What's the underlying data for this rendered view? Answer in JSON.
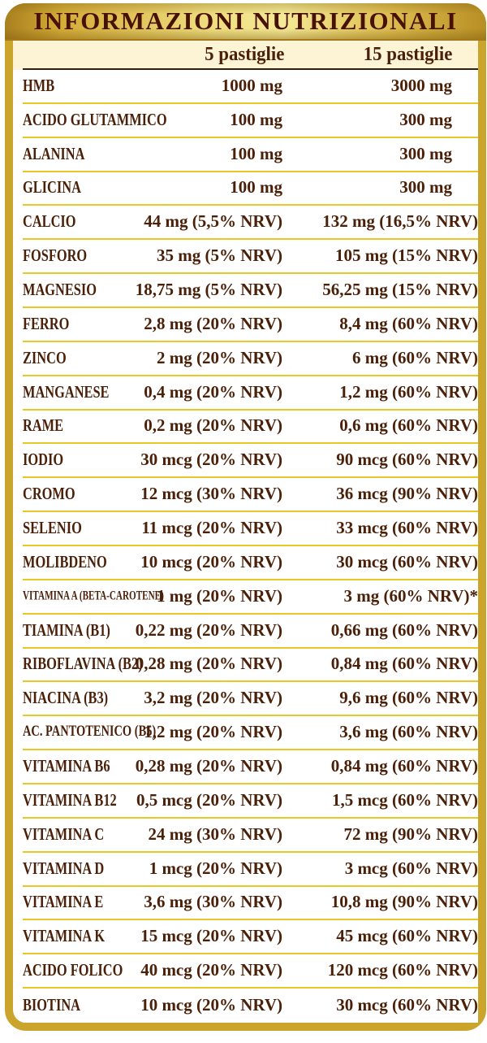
{
  "title": "INFORMAZIONI NUTRIZIONALI",
  "columns": [
    "5 pastiglie",
    "15 pastiglie"
  ],
  "rows": [
    {
      "name": "HMB",
      "per5": "1000 mg",
      "per15": "3000 mg"
    },
    {
      "name": "ACIDO GLUTAMMICO",
      "per5": "100 mg",
      "per15": "300 mg"
    },
    {
      "name": "ALANINA",
      "per5": "100 mg",
      "per15": "300 mg"
    },
    {
      "name": "GLICINA",
      "per5": "100 mg",
      "per15": "300 mg"
    },
    {
      "name": "CALCIO",
      "per5": "44 mg (5,5% NRV)",
      "per15": "132 mg (16,5% NRV)"
    },
    {
      "name": "FOSFORO",
      "per5": "35 mg (5% NRV)",
      "per15": "105 mg (15% NRV)"
    },
    {
      "name": "MAGNESIO",
      "per5": "18,75 mg (5% NRV)",
      "per15": "56,25 mg (15% NRV)"
    },
    {
      "name": "FERRO",
      "per5": "2,8 mg (20% NRV)",
      "per15": "8,4 mg (60% NRV)"
    },
    {
      "name": "ZINCO",
      "per5": "2 mg (20% NRV)",
      "per15": "6 mg (60% NRV)"
    },
    {
      "name": "MANGANESE",
      "per5": "0,4 mg (20% NRV)",
      "per15": "1,2 mg (60% NRV)"
    },
    {
      "name": "RAME",
      "per5": "0,2 mg (20% NRV)",
      "per15": "0,6 mg (60% NRV)"
    },
    {
      "name": "IODIO",
      "per5": "30 mcg (20% NRV)",
      "per15": "90 mcg (60% NRV)"
    },
    {
      "name": "CROMO",
      "per5": "12 mcg (30% NRV)",
      "per15": "36 mcg (90% NRV)"
    },
    {
      "name": "SELENIO",
      "per5": "11 mcg (20% NRV)",
      "per15": "33 mcg (60% NRV)"
    },
    {
      "name": "MOLIBDENO",
      "per5": "10 mcg (20% NRV)",
      "per15": "30 mcg (60% NRV)"
    },
    {
      "name": "VITAMINA A (BETA-CAROTENE)",
      "per5": "1 mg (20% NRV)",
      "per15": "3 mg (60% NRV)*"
    },
    {
      "name": "TIAMINA (B1)",
      "per5": "0,22 mg (20% NRV)",
      "per15": "0,66 mg (60% NRV)"
    },
    {
      "name": "RIBOFLAVINA (B2)",
      "per5": "0,28 mg (20% NRV)",
      "per15": "0,84 mg (60% NRV)"
    },
    {
      "name": "NIACINA (B3)",
      "per5": "3,2 mg (20% NRV)",
      "per15": "9,6 mg (60% NRV)"
    },
    {
      "name": "AC. PANTOTENICO (B5)",
      "per5": "1,2 mg (20% NRV)",
      "per15": "3,6 mg (60% NRV)"
    },
    {
      "name": "VITAMINA B6",
      "per5": "0,28 mg (20% NRV)",
      "per15": "0,84 mg (60% NRV)"
    },
    {
      "name": "VITAMINA B12",
      "per5": "0,5 mcg (20% NRV)",
      "per15": "1,5 mcg (60% NRV)"
    },
    {
      "name": "VITAMINA C",
      "per5": "24 mg (30% NRV)",
      "per15": "72 mg (90% NRV)"
    },
    {
      "name": "VITAMINA D",
      "per5": "1 mcg (20% NRV)",
      "per15": "3 mcg (60% NRV)"
    },
    {
      "name": "VITAMINA E",
      "per5": "3,6 mg (30% NRV)",
      "per15": "10,8 mg (90% NRV)"
    },
    {
      "name": "VITAMINA K",
      "per5": "15 mcg (20% NRV)",
      "per15": "45 mcg (60% NRV)"
    },
    {
      "name": "ACIDO FOLICO",
      "per5": "40 mcg (20% NRV)",
      "per15": "120 mcg (60% NRV)"
    },
    {
      "name": "BIOTINA",
      "per5": "10 mcg (20% NRV)",
      "per15": "30 mcg (60% NRV)"
    }
  ],
  "colors": {
    "gold_border": "#cba42c",
    "title_text": "#471106",
    "subheader_bg": "#fdf4d6",
    "dark_rule": "#33200c",
    "row_rule": "#e7c827",
    "row_text": "#4b2008",
    "row_bg": "#ffffff"
  }
}
